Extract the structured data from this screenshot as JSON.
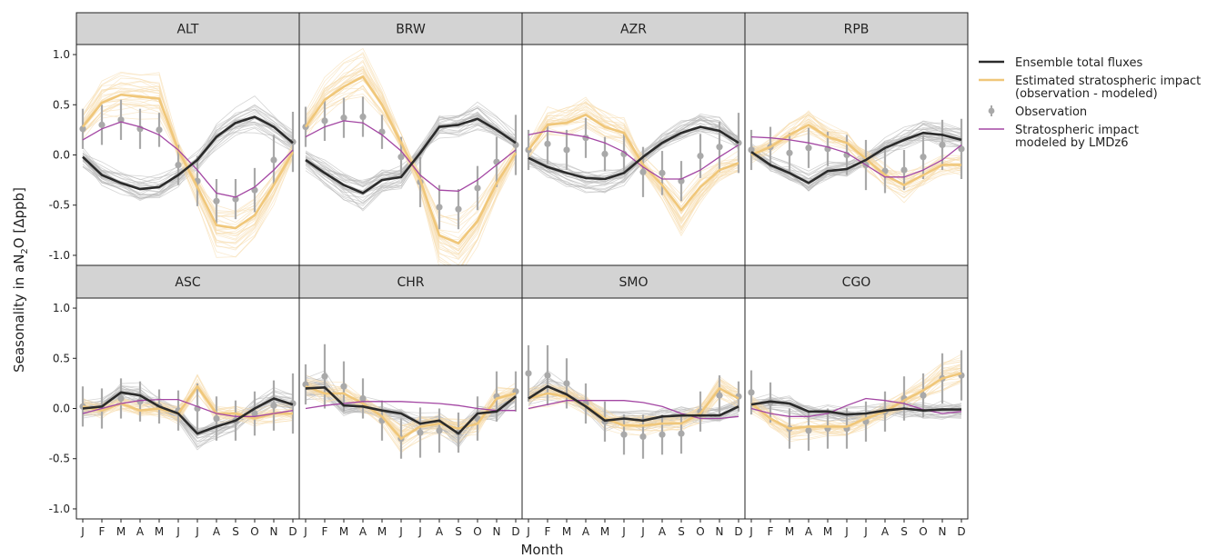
{
  "figure": {
    "ylabel_prefix": "Seasonality in aN",
    "ylabel_sub": "2",
    "ylabel_suffix": "O [Δppb]",
    "xlabel": "Month"
  },
  "legend": {
    "items": [
      {
        "label": "Ensemble total fluxes",
        "color": "#2b2b2b",
        "kind": "line"
      },
      {
        "label": "Estimated stratospheric impact",
        "label2": "(observation - modeled)",
        "color": "#f0c77a",
        "kind": "line"
      },
      {
        "label": "Observation",
        "color": "#a9a9a9",
        "kind": "errorbar"
      },
      {
        "label": "Stratospheric impact",
        "label2": "modeled by LMDz6",
        "color": "#a346a3",
        "kind": "line"
      }
    ]
  },
  "colors": {
    "ensemble": "#2b2b2b",
    "ensemble_members": "#b8b8b8",
    "estimated": "#f0c77a",
    "estimated_members": "#f6dcae",
    "observation": "#a9a9a9",
    "lmdz": "#a346a3",
    "panel_header": "#d3d3d3"
  },
  "chart_data": {
    "type": "line",
    "x": [
      "J",
      "F",
      "M",
      "A",
      "M",
      "J",
      "J",
      "A",
      "S",
      "O",
      "N",
      "D"
    ],
    "yticks": [
      "1.0",
      "0.5",
      "0.0",
      "-0.5",
      "-1.0"
    ],
    "ylim": [
      -1.1,
      1.1
    ],
    "panels": [
      {
        "station": "ALT",
        "ensemble": [
          -0.02,
          -0.2,
          -0.28,
          -0.34,
          -0.32,
          -0.2,
          -0.05,
          0.18,
          0.32,
          0.38,
          0.28,
          0.12
        ],
        "estimated": [
          0.28,
          0.52,
          0.6,
          0.58,
          0.56,
          0.05,
          -0.32,
          -0.7,
          -0.73,
          -0.6,
          -0.3,
          0.03
        ],
        "lmdz": [
          0.15,
          0.26,
          0.33,
          0.28,
          0.2,
          0.05,
          -0.15,
          -0.38,
          -0.42,
          -0.32,
          -0.15,
          0.05
        ],
        "obs": [
          0.26,
          0.3,
          0.35,
          0.26,
          0.25,
          -0.1,
          -0.26,
          -0.46,
          -0.44,
          -0.35,
          -0.05,
          0.13
        ],
        "obs_err": [
          0.2,
          0.2,
          0.2,
          0.2,
          0.17,
          0.2,
          0.25,
          0.22,
          0.2,
          0.22,
          0.25,
          0.3
        ]
      },
      {
        "station": "BRW",
        "ensemble": [
          -0.05,
          -0.18,
          -0.3,
          -0.38,
          -0.25,
          -0.22,
          0.02,
          0.28,
          0.3,
          0.36,
          0.25,
          0.12
        ],
        "estimated": [
          0.28,
          0.55,
          0.68,
          0.78,
          0.5,
          0.12,
          -0.25,
          -0.8,
          -0.88,
          -0.66,
          -0.28,
          0.02
        ],
        "lmdz": [
          0.18,
          0.28,
          0.34,
          0.32,
          0.2,
          0.04,
          -0.2,
          -0.35,
          -0.36,
          -0.25,
          -0.1,
          0.05
        ],
        "obs": [
          0.28,
          0.34,
          0.37,
          0.38,
          0.23,
          -0.02,
          -0.27,
          -0.52,
          -0.54,
          -0.33,
          -0.07,
          0.1
        ],
        "obs_err": [
          0.2,
          0.2,
          0.2,
          0.2,
          0.17,
          0.2,
          0.25,
          0.22,
          0.2,
          0.22,
          0.25,
          0.3
        ]
      },
      {
        "station": "AZR",
        "ensemble": [
          -0.03,
          -0.12,
          -0.18,
          -0.23,
          -0.24,
          -0.18,
          -0.02,
          0.12,
          0.22,
          0.28,
          0.24,
          0.12
        ],
        "estimated": [
          0.05,
          0.3,
          0.32,
          0.4,
          0.28,
          0.22,
          -0.1,
          -0.3,
          -0.55,
          -0.32,
          -0.15,
          -0.08
        ],
        "lmdz": [
          0.2,
          0.24,
          0.21,
          0.18,
          0.12,
          0.03,
          -0.12,
          -0.24,
          -0.24,
          -0.15,
          -0.02,
          0.1
        ],
        "obs": [
          0.05,
          0.11,
          0.05,
          0.17,
          0.01,
          0.01,
          -0.17,
          -0.18,
          -0.26,
          -0.01,
          0.08,
          0.12
        ],
        "obs_err": [
          0.2,
          0.2,
          0.2,
          0.2,
          0.17,
          0.2,
          0.25,
          0.22,
          0.2,
          0.22,
          0.25,
          0.3
        ]
      },
      {
        "station": "RPB",
        "ensemble": [
          0.03,
          -0.1,
          -0.18,
          -0.28,
          -0.16,
          -0.14,
          -0.05,
          0.07,
          0.15,
          0.22,
          0.2,
          0.15
        ],
        "estimated": [
          0.0,
          0.08,
          0.2,
          0.3,
          0.18,
          0.12,
          -0.04,
          -0.2,
          -0.3,
          -0.2,
          -0.1,
          -0.1
        ],
        "lmdz": [
          0.18,
          0.17,
          0.15,
          0.12,
          0.08,
          0.02,
          -0.1,
          -0.22,
          -0.22,
          -0.15,
          -0.05,
          0.1
        ],
        "obs": [
          0.05,
          0.08,
          0.02,
          0.07,
          0.06,
          0.0,
          -0.1,
          -0.16,
          -0.15,
          -0.02,
          0.1,
          0.06
        ],
        "obs_err": [
          0.2,
          0.2,
          0.2,
          0.2,
          0.17,
          0.2,
          0.25,
          0.22,
          0.2,
          0.22,
          0.25,
          0.3
        ]
      },
      {
        "station": "ASC",
        "ensemble": [
          0.0,
          0.02,
          0.16,
          0.13,
          0.02,
          -0.05,
          -0.25,
          -0.18,
          -0.12,
          0.0,
          0.1,
          0.04
        ],
        "estimated": [
          0.02,
          -0.02,
          0.05,
          -0.02,
          0.0,
          -0.05,
          0.22,
          -0.05,
          -0.05,
          -0.1,
          -0.05,
          -0.05
        ],
        "lmdz": [
          -0.05,
          0.0,
          0.05,
          0.08,
          0.09,
          0.09,
          0.02,
          -0.05,
          -0.08,
          -0.08,
          -0.05,
          -0.02
        ],
        "obs": [
          0.02,
          0.0,
          0.1,
          0.07,
          0.02,
          -0.02,
          0.0,
          -0.1,
          -0.12,
          -0.05,
          0.03,
          0.05
        ],
        "obs_err": [
          0.2,
          0.2,
          0.2,
          0.2,
          0.17,
          0.2,
          0.25,
          0.22,
          0.2,
          0.22,
          0.25,
          0.3
        ]
      },
      {
        "station": "CHR",
        "ensemble": [
          0.2,
          0.21,
          0.03,
          0.02,
          -0.02,
          -0.05,
          -0.15,
          -0.12,
          -0.25,
          -0.05,
          -0.03,
          0.12
        ],
        "estimated": [
          0.22,
          0.15,
          0.15,
          0.05,
          -0.08,
          -0.3,
          -0.18,
          -0.15,
          -0.2,
          -0.15,
          0.1,
          0.15
        ],
        "lmdz": [
          0.0,
          0.03,
          0.05,
          0.07,
          0.07,
          0.07,
          0.06,
          0.05,
          0.03,
          0.0,
          -0.02,
          -0.02
        ],
        "obs": [
          0.24,
          0.32,
          0.22,
          0.1,
          -0.12,
          -0.3,
          -0.24,
          -0.22,
          -0.24,
          -0.1,
          0.12,
          0.17
        ],
        "obs_err": [
          0.2,
          0.32,
          0.25,
          0.2,
          0.2,
          0.2,
          0.25,
          0.22,
          0.2,
          0.22,
          0.25,
          0.2
        ]
      },
      {
        "station": "SMO",
        "ensemble": [
          0.1,
          0.22,
          0.14,
          0.02,
          -0.12,
          -0.1,
          -0.12,
          -0.08,
          -0.07,
          -0.07,
          -0.07,
          0.02
        ],
        "estimated": [
          0.1,
          0.15,
          0.12,
          0.03,
          -0.1,
          -0.17,
          -0.17,
          -0.15,
          -0.15,
          -0.05,
          0.2,
          0.1
        ],
        "lmdz": [
          0.0,
          0.04,
          0.08,
          0.08,
          0.08,
          0.08,
          0.06,
          0.02,
          -0.05,
          -0.1,
          -0.1,
          -0.08
        ],
        "obs": [
          0.35,
          0.33,
          0.25,
          0.05,
          -0.13,
          -0.26,
          -0.28,
          -0.26,
          -0.25,
          -0.03,
          0.13,
          0.12
        ],
        "obs_err": [
          0.28,
          0.3,
          0.25,
          0.2,
          0.2,
          0.2,
          0.22,
          0.2,
          0.2,
          0.2,
          0.2,
          0.15
        ]
      },
      {
        "station": "CGO",
        "ensemble": [
          0.04,
          0.07,
          0.05,
          -0.03,
          -0.03,
          -0.06,
          -0.05,
          -0.02,
          0.0,
          -0.02,
          -0.01,
          -0.01
        ],
        "estimated": [
          0.05,
          -0.1,
          -0.2,
          -0.18,
          -0.18,
          -0.18,
          -0.1,
          -0.03,
          0.08,
          0.18,
          0.3,
          0.35
        ],
        "lmdz": [
          0.0,
          -0.05,
          -0.08,
          -0.08,
          -0.05,
          0.03,
          0.1,
          0.08,
          0.05,
          -0.01,
          -0.05,
          -0.03
        ],
        "obs": [
          0.16,
          0.06,
          -0.2,
          -0.22,
          -0.2,
          -0.2,
          -0.13,
          -0.03,
          0.1,
          0.13,
          0.3,
          0.33
        ],
        "obs_err": [
          0.22,
          0.2,
          0.2,
          0.2,
          0.2,
          0.2,
          0.2,
          0.2,
          0.22,
          0.22,
          0.25,
          0.25
        ]
      }
    ]
  }
}
